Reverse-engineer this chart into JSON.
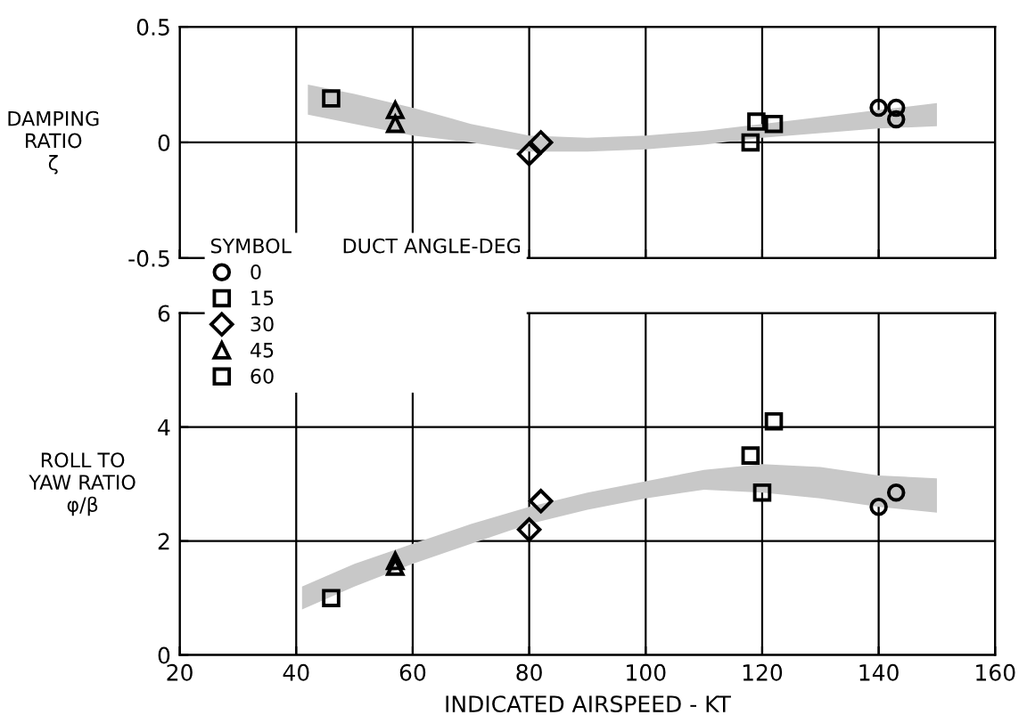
{
  "chart_data": [
    {
      "type": "scatter",
      "ylabel": "DAMPING\nRATIO\nζ",
      "xlim": [
        20,
        160
      ],
      "xticks": [
        20,
        40,
        60,
        80,
        100,
        120,
        140,
        160
      ],
      "ylim": [
        -0.5,
        0.5
      ],
      "yticks": [
        -0.5,
        0,
        0.5
      ],
      "tick_labels": "y",
      "grid": true,
      "series": [
        {
          "type": "line",
          "color": "#c8c8c8",
          "x": [
            42,
            50,
            60,
            70,
            80,
            90,
            100,
            110,
            120,
            130,
            140,
            150
          ],
          "values": [
            null,
            null,
            null,
            null,
            null,
            null,
            null,
            null,
            null,
            null,
            null,
            null
          ],
          "lower": [
            0.12,
            0.08,
            0.03,
            0.0,
            -0.04,
            -0.04,
            -0.03,
            -0.01,
            0.02,
            0.04,
            0.06,
            0.07
          ],
          "upper": [
            0.25,
            0.21,
            0.15,
            0.08,
            0.03,
            0.02,
            0.03,
            0.05,
            0.08,
            0.11,
            0.14,
            0.17
          ]
        },
        {
          "marker": "circle",
          "color": "#000000",
          "x": [
            140,
            143,
            143
          ],
          "values": [
            0.15,
            0.15,
            0.1
          ]
        },
        {
          "marker": "square",
          "color": "#000000",
          "x": [
            119,
            122,
            118
          ],
          "values": [
            0.09,
            0.08,
            0.0
          ]
        },
        {
          "marker": "diamond",
          "color": "#000000",
          "x": [
            80,
            82
          ],
          "values": [
            -0.05,
            0.0
          ]
        },
        {
          "marker": "triangle",
          "color": "#000000",
          "x": [
            57,
            57
          ],
          "values": [
            0.14,
            0.08
          ]
        },
        {
          "marker": "square",
          "color": "#000000",
          "x": [
            46
          ],
          "values": [
            0.19
          ]
        }
      ]
    },
    {
      "type": "scatter",
      "xlabel": "INDICATED AIRSPEED - KT",
      "ylabel": "ROLL TO\nYAW RATIO\nφ/β",
      "xlim": [
        20,
        160
      ],
      "xticks": [
        20,
        40,
        60,
        80,
        100,
        120,
        140,
        160
      ],
      "ylim": [
        0,
        6
      ],
      "yticks": [
        0,
        2,
        4,
        6
      ],
      "grid": true,
      "legend": "top left",
      "legend_title": "SYMBOL        DUCT ANGLE-DEG",
      "series": [
        {
          "type": "line",
          "color": "#c8c8c8",
          "x": [
            41,
            50,
            60,
            70,
            80,
            90,
            100,
            110,
            120,
            130,
            140,
            150
          ],
          "values": [
            null,
            null,
            null,
            null,
            null,
            null,
            null,
            null,
            null,
            null,
            null,
            null
          ],
          "lower": [
            0.8,
            1.2,
            1.6,
            1.95,
            2.3,
            2.55,
            2.75,
            2.9,
            2.85,
            2.75,
            2.6,
            2.5
          ],
          "upper": [
            1.2,
            1.6,
            1.95,
            2.3,
            2.6,
            2.85,
            3.05,
            3.25,
            3.35,
            3.3,
            3.15,
            3.1
          ]
        },
        {
          "name": "0",
          "marker": "circle",
          "color": "#000000",
          "x": [
            140,
            143
          ],
          "values": [
            2.6,
            2.85
          ]
        },
        {
          "name": "15",
          "marker": "square",
          "color": "#000000",
          "x": [
            122,
            118,
            120
          ],
          "values": [
            4.1,
            3.5,
            2.85
          ]
        },
        {
          "name": "30",
          "marker": "diamond",
          "color": "#000000",
          "x": [
            80,
            82
          ],
          "values": [
            2.2,
            2.7
          ]
        },
        {
          "name": "45",
          "marker": "triangle",
          "color": "#000000",
          "x": [
            57,
            57
          ],
          "values": [
            1.65,
            1.55
          ]
        },
        {
          "name": "60",
          "marker": "square",
          "color": "#000000",
          "x": [
            46
          ],
          "values": [
            1.0
          ]
        }
      ]
    }
  ]
}
